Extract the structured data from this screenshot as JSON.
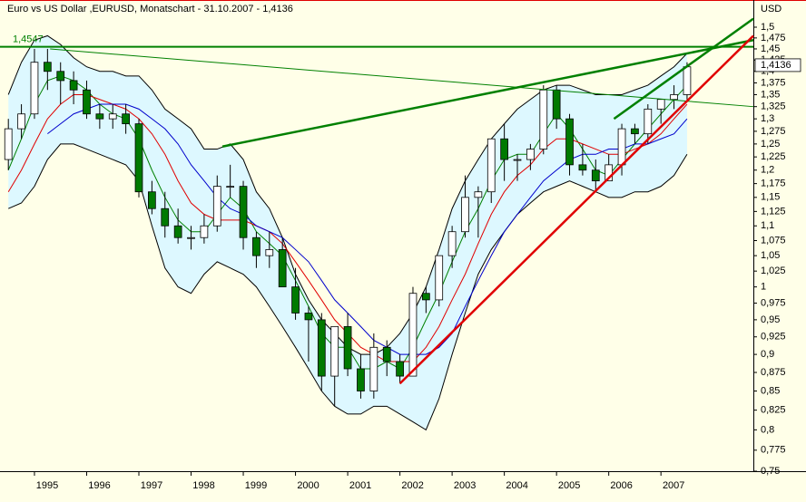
{
  "chart_data": {
    "type": "candlestick",
    "title": "Euro vs US Dollar ,EURUSD, Monatschart - 31.10.2007 - 1,4136",
    "y_label": "USD",
    "log_y": true,
    "background": "#ffffe8",
    "up_color": "#ffffff",
    "down_color": "#007a00",
    "x": [
      1994.5,
      1994.75,
      1995,
      1995.25,
      1995.5,
      1995.75,
      1996,
      1996.25,
      1996.5,
      1996.75,
      1997,
      1997.25,
      1997.5,
      1997.75,
      1998,
      1998.25,
      1998.5,
      1998.75,
      1999,
      1999.25,
      1999.5,
      1999.75,
      2000,
      2000.25,
      2000.5,
      2000.75,
      2001,
      2001.25,
      2001.5,
      2001.75,
      2002,
      2002.25,
      2002.5,
      2002.75,
      2003,
      2003.25,
      2003.5,
      2003.75,
      2004,
      2004.25,
      2004.5,
      2004.75,
      2005,
      2005.25,
      2005.5,
      2005.75,
      2006,
      2006.25,
      2006.5,
      2006.75,
      2007,
      2007.25,
      2007.5
    ],
    "open": [
      1.22,
      1.28,
      1.31,
      1.42,
      1.4,
      1.38,
      1.36,
      1.31,
      1.3,
      1.31,
      1.29,
      1.16,
      1.13,
      1.1,
      1.08,
      1.08,
      1.1,
      1.17,
      1.17,
      1.08,
      1.05,
      1.06,
      1.0,
      0.96,
      0.95,
      0.87,
      0.94,
      0.88,
      0.85,
      0.91,
      0.89,
      0.87,
      0.99,
      0.98,
      1.05,
      1.09,
      1.15,
      1.16,
      1.26,
      1.22,
      1.22,
      1.24,
      1.36,
      1.3,
      1.21,
      1.2,
      1.18,
      1.21,
      1.28,
      1.27,
      1.32,
      1.34,
      1.35
    ],
    "high": [
      1.3,
      1.33,
      1.45,
      1.45,
      1.42,
      1.4,
      1.38,
      1.33,
      1.33,
      1.33,
      1.3,
      1.18,
      1.16,
      1.13,
      1.1,
      1.12,
      1.19,
      1.21,
      1.18,
      1.09,
      1.09,
      1.08,
      1.03,
      0.97,
      0.96,
      0.94,
      0.96,
      0.9,
      0.93,
      0.92,
      0.9,
      1.0,
      1.0,
      1.05,
      1.1,
      1.19,
      1.17,
      1.26,
      1.29,
      1.23,
      1.25,
      1.37,
      1.37,
      1.31,
      1.25,
      1.22,
      1.23,
      1.29,
      1.29,
      1.33,
      1.34,
      1.37,
      1.42
    ],
    "low": [
      1.2,
      1.26,
      1.3,
      1.36,
      1.33,
      1.33,
      1.3,
      1.28,
      1.28,
      1.27,
      1.15,
      1.12,
      1.08,
      1.07,
      1.06,
      1.07,
      1.09,
      1.15,
      1.06,
      1.03,
      1.03,
      1.0,
      0.95,
      0.89,
      0.85,
      0.83,
      0.87,
      0.84,
      0.84,
      0.87,
      0.86,
      0.87,
      0.96,
      0.97,
      1.03,
      1.08,
      1.08,
      1.14,
      1.18,
      1.18,
      1.2,
      1.23,
      1.28,
      1.19,
      1.19,
      1.16,
      1.18,
      1.19,
      1.25,
      1.25,
      1.29,
      1.32,
      1.34
    ],
    "close": [
      1.28,
      1.31,
      1.42,
      1.4,
      1.38,
      1.36,
      1.31,
      1.3,
      1.31,
      1.29,
      1.16,
      1.13,
      1.1,
      1.08,
      1.08,
      1.1,
      1.17,
      1.17,
      1.08,
      1.05,
      1.06,
      1.0,
      0.96,
      0.95,
      0.87,
      0.94,
      0.88,
      0.85,
      0.91,
      0.89,
      0.87,
      0.99,
      0.98,
      1.05,
      1.09,
      1.15,
      1.16,
      1.26,
      1.22,
      1.22,
      1.24,
      1.36,
      1.3,
      1.21,
      1.2,
      1.18,
      1.21,
      1.28,
      1.27,
      1.32,
      1.34,
      1.35,
      1.41
    ],
    "band": {
      "color": "#ddf8ff",
      "upper": [
        1.35,
        1.42,
        1.47,
        1.48,
        1.46,
        1.43,
        1.41,
        1.4,
        1.4,
        1.39,
        1.39,
        1.36,
        1.32,
        1.3,
        1.28,
        1.24,
        1.24,
        1.25,
        1.22,
        1.16,
        1.13,
        1.08,
        1.02,
        0.98,
        0.95,
        0.93,
        0.91,
        0.9,
        0.9,
        0.91,
        0.93,
        0.96,
        1.0,
        1.06,
        1.13,
        1.18,
        1.22,
        1.26,
        1.29,
        1.32,
        1.34,
        1.36,
        1.37,
        1.37,
        1.36,
        1.35,
        1.35,
        1.35,
        1.36,
        1.37,
        1.39,
        1.41,
        1.44
      ],
      "lower": [
        1.13,
        1.14,
        1.17,
        1.22,
        1.25,
        1.25,
        1.24,
        1.23,
        1.22,
        1.21,
        1.18,
        1.1,
        1.03,
        1.0,
        0.99,
        1.02,
        1.04,
        1.03,
        1.02,
        1.0,
        0.97,
        0.94,
        0.91,
        0.88,
        0.85,
        0.83,
        0.82,
        0.82,
        0.83,
        0.83,
        0.82,
        0.81,
        0.8,
        0.84,
        0.9,
        0.96,
        1.02,
        1.06,
        1.09,
        1.12,
        1.14,
        1.16,
        1.17,
        1.18,
        1.17,
        1.16,
        1.15,
        1.15,
        1.16,
        1.16,
        1.17,
        1.19,
        1.23
      ]
    },
    "overlays": [
      {
        "color": "#008000",
        "values": [
          1.2,
          1.26,
          1.33,
          1.38,
          1.39,
          1.38,
          1.36,
          1.33,
          1.31,
          1.3,
          1.26,
          1.2,
          1.15,
          1.11,
          1.09,
          1.09,
          1.12,
          1.15,
          1.13,
          1.09,
          1.07,
          1.05,
          1.01,
          0.97,
          0.93,
          0.91,
          0.91,
          0.88,
          0.88,
          0.89,
          0.88,
          0.91,
          0.95,
          0.99,
          1.04,
          1.09,
          1.13,
          1.18,
          1.22,
          1.23,
          1.23,
          1.27,
          1.31,
          1.28,
          1.24,
          1.2,
          1.19,
          1.22,
          1.25,
          1.28,
          1.31,
          1.34,
          1.37
        ]
      },
      {
        "color": "#e00000",
        "values": [
          1.16,
          1.2,
          1.25,
          1.3,
          1.33,
          1.35,
          1.35,
          1.34,
          1.33,
          1.32,
          1.3,
          1.27,
          1.23,
          1.18,
          1.14,
          1.12,
          1.11,
          1.11,
          1.11,
          1.1,
          1.09,
          1.07,
          1.04,
          1.01,
          0.98,
          0.95,
          0.93,
          0.91,
          0.9,
          0.89,
          0.89,
          0.89,
          0.91,
          0.94,
          0.98,
          1.02,
          1.07,
          1.12,
          1.16,
          1.19,
          1.21,
          1.24,
          1.26,
          1.26,
          1.25,
          1.24,
          1.23,
          1.23,
          1.24,
          1.25,
          1.27,
          1.3,
          1.33
        ]
      },
      {
        "color": "#0000cc",
        "values": [
          null,
          null,
          null,
          1.27,
          1.29,
          1.31,
          1.32,
          1.33,
          1.33,
          1.33,
          1.32,
          1.3,
          1.28,
          1.25,
          1.21,
          1.18,
          1.15,
          1.13,
          1.12,
          1.1,
          1.09,
          1.08,
          1.06,
          1.04,
          1.01,
          0.98,
          0.96,
          0.94,
          0.92,
          0.91,
          0.9,
          0.9,
          0.9,
          0.91,
          0.93,
          0.97,
          1.01,
          1.05,
          1.09,
          1.12,
          1.15,
          1.18,
          1.2,
          1.22,
          1.23,
          1.23,
          1.24,
          1.24,
          1.25,
          1.25,
          1.26,
          1.27,
          1.3
        ]
      }
    ],
    "trendlines": [
      {
        "x": [
          1994.34,
          2008.77
        ],
        "y": [
          1.4547,
          1.4547
        ],
        "color": "#008000",
        "width": 2,
        "label": "1,4547"
      },
      {
        "x": [
          1995.3,
          2008.77
        ],
        "y": [
          1.45,
          1.325
        ],
        "color": "#008000",
        "width": 1
      },
      {
        "x": [
          1998.6,
          2008.77
        ],
        "y": [
          1.245,
          1.47
        ],
        "color": "#008000",
        "width": 2.5
      },
      {
        "x": [
          2006.1,
          2008.77
        ],
        "y": [
          1.3,
          1.52
        ],
        "color": "#008000",
        "width": 2.5
      },
      {
        "x": [
          2002.0,
          2008.77
        ],
        "y": [
          0.86,
          1.48
        ],
        "color": "#e00000",
        "width": 2.5
      }
    ],
    "last_price": {
      "value": 1.4136,
      "label": "1,4136"
    },
    "xlim": [
      1994.34,
      2008.77
    ],
    "xticks": [
      1995,
      1996,
      1997,
      1998,
      1999,
      2000,
      2001,
      2002,
      2003,
      2004,
      2005,
      2006,
      2007
    ],
    "ylim": [
      0.75,
      1.565
    ],
    "yticks": [
      {
        "value": 1.5,
        "label": "1,5"
      },
      {
        "value": 1.475,
        "label": "1,475"
      },
      {
        "value": 1.45,
        "label": "1,45"
      },
      {
        "value": 1.425,
        "label": "1,425"
      },
      {
        "value": 1.4,
        "label": "1,4"
      },
      {
        "value": 1.375,
        "label": "1,375"
      },
      {
        "value": 1.35,
        "label": "1,35"
      },
      {
        "value": 1.325,
        "label": "1,325"
      },
      {
        "value": 1.3,
        "label": "1,3"
      },
      {
        "value": 1.275,
        "label": "1,275"
      },
      {
        "value": 1.25,
        "label": "1,25"
      },
      {
        "value": 1.225,
        "label": "1,225"
      },
      {
        "value": 1.2,
        "label": "1,2"
      },
      {
        "value": 1.175,
        "label": "1,175"
      },
      {
        "value": 1.15,
        "label": "1,15"
      },
      {
        "value": 1.125,
        "label": "1,125"
      },
      {
        "value": 1.1,
        "label": "1,1"
      },
      {
        "value": 1.075,
        "label": "1,075"
      },
      {
        "value": 1.05,
        "label": "1,05"
      },
      {
        "value": 1.025,
        "label": "1,025"
      },
      1,
      {
        "value": 0.975,
        "label": "0,975"
      },
      {
        "value": 0.95,
        "label": "0,95"
      },
      {
        "value": 0.925,
        "label": "0,925"
      },
      {
        "value": 0.9,
        "label": "0,9"
      },
      {
        "value": 0.875,
        "label": "0,875"
      },
      {
        "value": 0.85,
        "label": "0,85"
      },
      {
        "value": 0.825,
        "label": "0,825"
      },
      {
        "value": 0.8,
        "label": "0,8"
      },
      {
        "value": 0.775,
        "label": "0,775"
      },
      {
        "value": 0.75,
        "label": "0,75"
      }
    ]
  }
}
